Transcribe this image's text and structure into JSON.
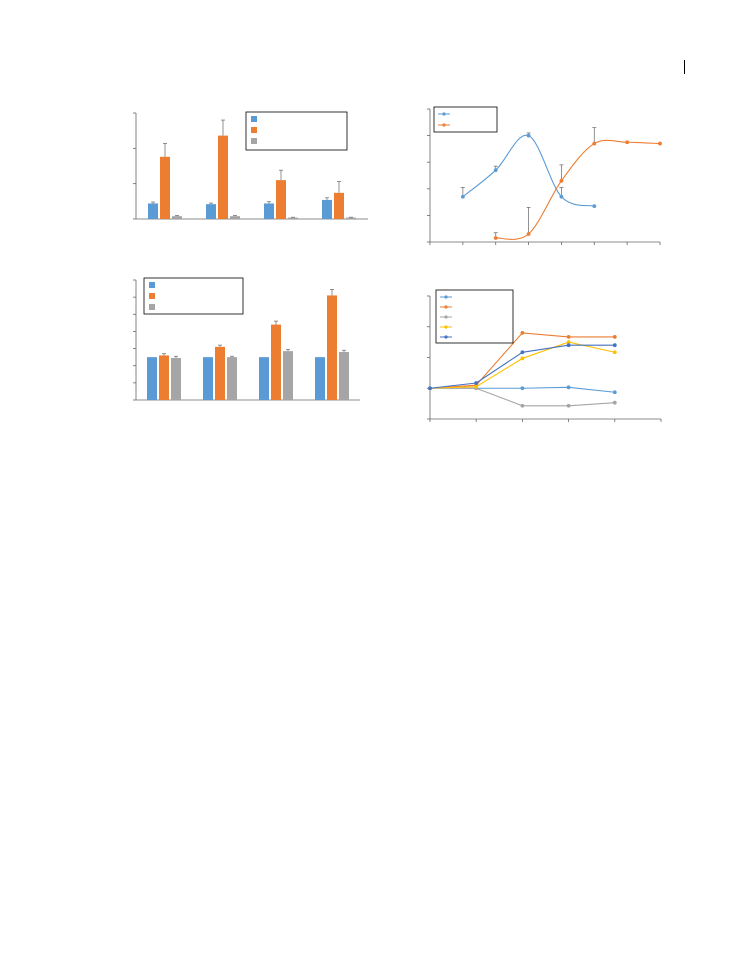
{
  "chart_data": [
    {
      "type": "bar",
      "categories": [
        "",
        "",
        "",
        ""
      ],
      "series": [
        {
          "name": "",
          "color": "#5b9bd5",
          "values": [
            0.22,
            0.21,
            0.22,
            0.27
          ],
          "errors": [
            0.02,
            0.015,
            0.025,
            0.03
          ]
        },
        {
          "name": "",
          "color": "#ed7d31",
          "values": [
            0.88,
            1.18,
            0.55,
            0.37
          ],
          "errors": [
            0.19,
            0.22,
            0.14,
            0.16
          ]
        },
        {
          "name": "",
          "color": "#a5a5a5",
          "values": [
            0.04,
            0.04,
            0.02,
            0.02
          ],
          "errors": [
            0.01,
            0.01,
            0.005,
            0.005
          ]
        }
      ],
      "ylim": [
        0,
        1.5
      ],
      "yticks": [
        0,
        0.5,
        1.0,
        1.5
      ],
      "legend": "top-right",
      "grid": false,
      "error_bars": true
    },
    {
      "type": "line",
      "x": [
        0,
        1,
        2,
        3,
        4,
        5,
        6,
        7
      ],
      "series": [
        {
          "name": "",
          "color": "#5b9bd5",
          "points": [
            [
              1,
              1.7
            ],
            [
              2,
              2.7
            ],
            [
              3,
              4.0
            ],
            [
              4,
              1.7
            ],
            [
              5,
              1.35
            ]
          ],
          "errors": [
            0.35,
            0.15,
            0.1,
            0.35,
            0
          ]
        },
        {
          "name": "",
          "color": "#ed7d31",
          "points": [
            [
              2,
              0.15
            ],
            [
              3,
              0.3
            ],
            [
              4,
              2.3
            ],
            [
              5,
              3.7
            ],
            [
              6,
              3.75
            ],
            [
              7,
              3.7
            ]
          ],
          "errors": [
            0.2,
            1.0,
            0.6,
            0.6,
            0,
            0
          ]
        }
      ],
      "xlim": [
        0,
        7
      ],
      "ylim": [
        0,
        5
      ],
      "yticks": [
        0,
        1,
        2,
        3,
        4,
        5
      ],
      "smooth": true,
      "legend": "top-left",
      "grid": false,
      "error_bars": true
    },
    {
      "type": "bar",
      "categories": [
        "",
        "",
        "",
        ""
      ],
      "series": [
        {
          "name": "",
          "color": "#5b9bd5",
          "values": [
            2.5,
            2.5,
            2.5,
            2.5
          ],
          "errors": [
            0,
            0,
            0,
            0
          ]
        },
        {
          "name": "",
          "color": "#ed7d31",
          "values": [
            2.6,
            3.1,
            4.4,
            6.1
          ],
          "errors": [
            0.1,
            0.1,
            0.2,
            0.35
          ]
        },
        {
          "name": "",
          "color": "#a5a5a5",
          "values": [
            2.45,
            2.5,
            2.85,
            2.8
          ],
          "errors": [
            0.1,
            0.05,
            0.1,
            0.1
          ]
        }
      ],
      "ylim": [
        0,
        7
      ],
      "yticks": [
        0,
        1,
        2,
        3,
        4,
        5,
        6,
        7
      ],
      "legend": "top-left",
      "grid": false,
      "error_bars": true
    },
    {
      "type": "line",
      "x": [
        0,
        1,
        2,
        3,
        4,
        5
      ],
      "series": [
        {
          "name": "",
          "color": "#5b9bd5",
          "points": [
            [
              0,
              1.0
            ],
            [
              1,
              1.0
            ],
            [
              2,
              1.0
            ],
            [
              3,
              1.03
            ],
            [
              4,
              0.87
            ]
          ]
        },
        {
          "name": "",
          "color": "#ed7d31",
          "points": [
            [
              0,
              1.0
            ],
            [
              1,
              1.1
            ],
            [
              2,
              2.8
            ],
            [
              3,
              2.67
            ],
            [
              4,
              2.67
            ]
          ]
        },
        {
          "name": "",
          "color": "#a5a5a5",
          "points": [
            [
              0,
              1.0
            ],
            [
              1,
              1.0
            ],
            [
              2,
              0.43
            ],
            [
              3,
              0.43
            ],
            [
              4,
              0.53
            ]
          ]
        },
        {
          "name": "",
          "color": "#ffc000",
          "points": [
            [
              0,
              1.0
            ],
            [
              1,
              1.05
            ],
            [
              2,
              1.97
            ],
            [
              3,
              2.5
            ],
            [
              4,
              2.17
            ]
          ]
        },
        {
          "name": "",
          "color": "#4472c4",
          "points": [
            [
              0,
              1.0
            ],
            [
              1,
              1.17
            ],
            [
              2,
              2.17
            ],
            [
              3,
              2.4
            ],
            [
              4,
              2.4
            ]
          ]
        }
      ],
      "xlim": [
        0,
        5
      ],
      "ylim": [
        0,
        4
      ],
      "yticks": [
        0,
        1,
        2,
        3,
        4
      ],
      "legend": "top-left",
      "grid": false
    }
  ]
}
